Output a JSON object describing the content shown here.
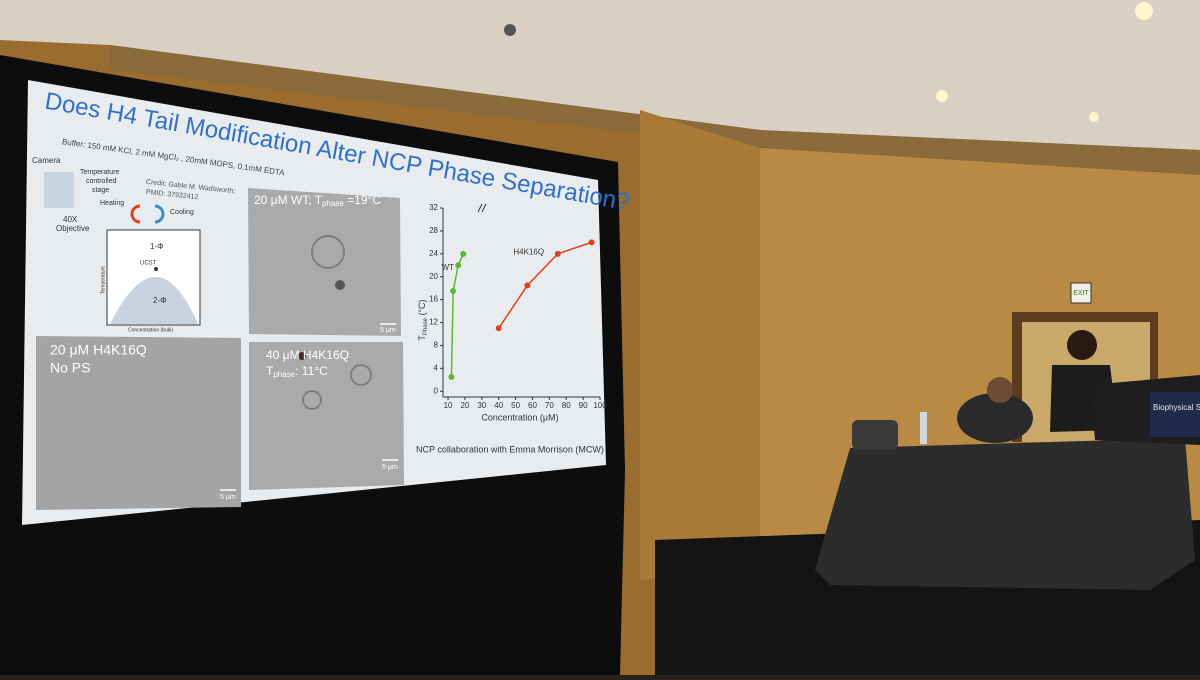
{
  "slide": {
    "title": "Does H4 Tail Modification Alter NCP Phase Separation?",
    "buffer": "Buffer: 150 mM KCl, 2 mM MgCl₂ , 20mM MOPS, 0.1mM EDTA",
    "setup": {
      "camera": "Camera",
      "stage": [
        "Temperature",
        "controlled",
        "stage"
      ],
      "objective": [
        "40X",
        "Objective"
      ],
      "heating": "Heating",
      "cooling": "Cooling"
    },
    "credit": [
      "Credit: Gable M. Wadsworth;",
      "PMID: 37932412"
    ],
    "phase_diagram": {
      "one_phase": "1-Φ",
      "ucst": "UCST",
      "two_phase": "2-Φ",
      "y_label": "Temperature",
      "x_label": "Concentration (bulk)"
    },
    "panels": [
      {
        "parts": [
          "20 μM WT; T",
          "phase",
          " =19°C"
        ],
        "scale": "5 μm"
      },
      {
        "lines": [
          "20 μM H4K16Q",
          "No PS"
        ],
        "scale": "5 μm"
      },
      {
        "lines": [
          "40 μM H4K16Q"
        ],
        "tphase": [
          "T",
          "phase",
          ": 11°C"
        ],
        "scale": "5 μm"
      }
    ],
    "footnote": "NCP collaboration with Emma Morrison (MCW)"
  },
  "chart_data": {
    "type": "line",
    "y_label": {
      "main": "T",
      "sub": "Phase",
      "unit": " (°C)"
    },
    "x_label": "Concentration (μM)",
    "xlim": [
      7,
      100
    ],
    "ylim": [
      -1,
      32
    ],
    "xticks": [
      10,
      20,
      30,
      40,
      50,
      60,
      70,
      80,
      90,
      100
    ],
    "yticks": [
      0,
      4,
      8,
      12,
      16,
      20,
      24,
      28,
      32
    ],
    "series": [
      {
        "name": "WT",
        "color": "#5cb82e",
        "x": [
          12,
          13,
          16,
          19
        ],
        "values": [
          2.5,
          17.5,
          22,
          24
        ]
      },
      {
        "name": "H4K16Q",
        "color": "#e0401a",
        "x": [
          40,
          57,
          75,
          95
        ],
        "values": [
          11,
          18.5,
          24,
          26
        ]
      }
    ]
  },
  "room": {
    "exit_sign": "EXIT",
    "podium_sign": "Biophysical Socie"
  }
}
